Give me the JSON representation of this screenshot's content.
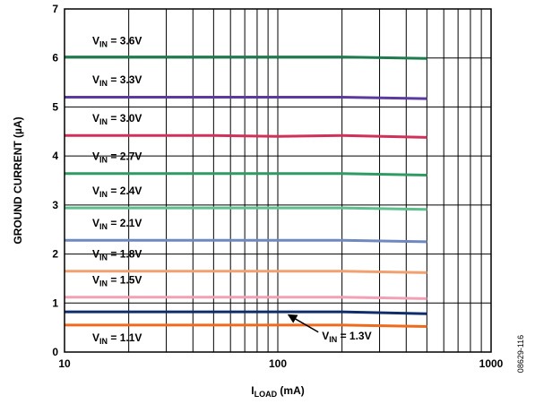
{
  "chart_data": {
    "type": "line",
    "xlabel": {
      "main": "I",
      "sub": "LOAD",
      "unit": " (mA)"
    },
    "ylabel": "GROUND CURRENT (µA)",
    "figure_id": "08629-116",
    "xscale": "log",
    "xlim": [
      10,
      1000
    ],
    "ylim": [
      0,
      7
    ],
    "grid": true,
    "x_ticks": [
      "10",
      "100",
      "1000"
    ],
    "y_ticks": [
      "0",
      "1",
      "2",
      "3",
      "4",
      "5",
      "6",
      "7"
    ],
    "x": [
      10,
      20,
      50,
      100,
      200,
      500
    ],
    "series": [
      {
        "label": {
          "main": "V",
          "sub": "IN",
          "rest": " = 3.6V"
        },
        "color": "#1f7a4d",
        "values": [
          6.02,
          6.02,
          6.02,
          6.02,
          6.02,
          5.99
        ]
      },
      {
        "label": {
          "main": "V",
          "sub": "IN",
          "rest": " = 3.3V"
        },
        "color": "#5b3aa0",
        "values": [
          5.2,
          5.2,
          5.2,
          5.2,
          5.2,
          5.17
        ]
      },
      {
        "label": {
          "main": "V",
          "sub": "IN",
          "rest": " = 3.0V"
        },
        "color": "#d0305a",
        "values": [
          4.42,
          4.42,
          4.42,
          4.4,
          4.42,
          4.38
        ]
      },
      {
        "label": {
          "main": "V",
          "sub": "IN",
          "rest": " = 2.7V"
        },
        "color": "#2e9a64",
        "values": [
          3.64,
          3.64,
          3.64,
          3.64,
          3.64,
          3.61
        ]
      },
      {
        "label": {
          "main": "V",
          "sub": "IN",
          "rest": " = 2.4V"
        },
        "color": "#5cbf8c",
        "values": [
          2.94,
          2.94,
          2.94,
          2.94,
          2.94,
          2.91
        ]
      },
      {
        "label": {
          "main": "V",
          "sub": "IN",
          "rest": " = 2.1V"
        },
        "color": "#6f88bf",
        "values": [
          2.28,
          2.28,
          2.28,
          2.28,
          2.28,
          2.25
        ]
      },
      {
        "label": {
          "main": "V",
          "sub": "IN",
          "rest": " = 1.8V"
        },
        "color": "#f2a070",
        "values": [
          1.65,
          1.65,
          1.65,
          1.65,
          1.65,
          1.62
        ]
      },
      {
        "label": {
          "main": "V",
          "sub": "IN",
          "rest": " = 1.5V"
        },
        "color": "#f2a0b6",
        "values": [
          1.12,
          1.12,
          1.12,
          1.12,
          1.12,
          1.09
        ]
      },
      {
        "label": {
          "main": "V",
          "sub": "IN",
          "rest": " = 1.3V"
        },
        "color": "#0f2d6b",
        "values": [
          0.82,
          0.82,
          0.82,
          0.82,
          0.82,
          0.78
        ]
      },
      {
        "label": {
          "main": "V",
          "sub": "IN",
          "rest": " = 1.1V"
        },
        "color": "#f06a1e",
        "values": [
          0.55,
          0.55,
          0.55,
          0.55,
          0.55,
          0.52
        ]
      }
    ],
    "labeled_lines": [
      {
        "series": 0,
        "at": [
          13.5,
          6.28
        ]
      },
      {
        "series": 1,
        "at": [
          13.5,
          5.48
        ]
      },
      {
        "series": 2,
        "at": [
          13.5,
          4.7
        ]
      },
      {
        "series": 3,
        "at": [
          13.5,
          3.92
        ]
      },
      {
        "series": 4,
        "at": [
          13.5,
          3.22
        ]
      },
      {
        "series": 5,
        "at": [
          13.5,
          2.56
        ]
      },
      {
        "series": 6,
        "at": [
          13.5,
          1.93
        ]
      },
      {
        "series": 7,
        "at": [
          13.5,
          1.4
        ]
      },
      {
        "series": 8,
        "at": [
          161,
          0.26
        ],
        "arrow_to": [
          112,
          0.76
        ]
      },
      {
        "series": 9,
        "at": [
          13.5,
          0.22
        ]
      }
    ]
  }
}
